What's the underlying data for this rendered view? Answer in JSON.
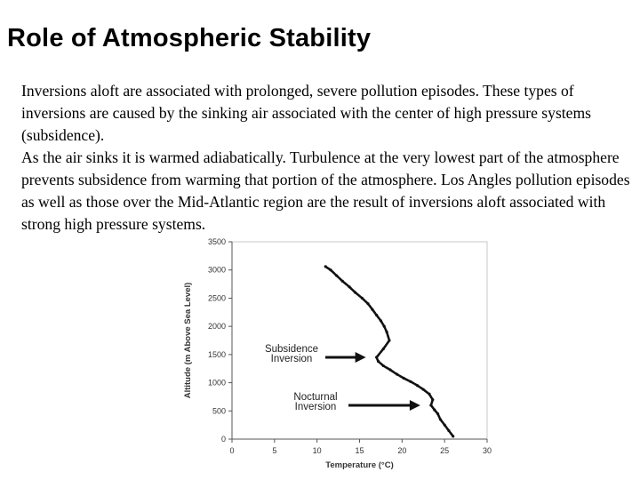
{
  "slide": {
    "title": "Role of Atmospheric Stability",
    "paragraphs": [
      "Inversions aloft are associated with prolonged, severe pollution episodes.  These types of inversions are caused by the sinking air associated with the center of high pressure systems (subsidence).",
      "As the air sinks it is warmed adiabatically.  Turbulence at the very lowest part of the atmosphere prevents subsidence from warming that portion of the atmosphere.  Los Angles pollution episodes as well as those over the Mid-Atlantic region are the result of inversions aloft associated with strong high pressure systems."
    ]
  },
  "chart_data": {
    "type": "line",
    "title": "",
    "xlabel": "Temperature (°C)",
    "ylabel": "Altitude (m Above Sea Level)",
    "xlim": [
      0,
      30
    ],
    "ylim": [
      0,
      3500
    ],
    "xticks": [
      "0",
      "5",
      "10",
      "15",
      "20",
      "25",
      "30"
    ],
    "yticks": [
      "0",
      "500",
      "1000",
      "1500",
      "2000",
      "2500",
      "3000",
      "3500"
    ],
    "grid": false,
    "series": [
      {
        "color": "#111111",
        "x": [
          26.0,
          25.5,
          25.0,
          24.5,
          24.2,
          23.8,
          23.4,
          23.6,
          23.2,
          22.5,
          21.8,
          21.0,
          20.2,
          19.4,
          18.6,
          17.8,
          17.2,
          17.0,
          17.8,
          18.5,
          18.2,
          17.9,
          17.5,
          17.0,
          16.5,
          16.0,
          15.3,
          14.5,
          13.8,
          13.0,
          12.3,
          11.6,
          11.0
        ],
        "y": [
          50,
          150,
          250,
          350,
          450,
          520,
          600,
          700,
          800,
          880,
          950,
          1020,
          1080,
          1150,
          1230,
          1300,
          1380,
          1450,
          1600,
          1750,
          1900,
          2000,
          2100,
          2200,
          2300,
          2400,
          2500,
          2600,
          2700,
          2800,
          2900,
          3000,
          3060
        ]
      }
    ],
    "annotations": [
      {
        "label_lines": [
          "Subsidence",
          "Inversion"
        ],
        "arrow_to": [
          17.0,
          1450
        ]
      },
      {
        "label_lines": [
          "Nocturnal",
          "Inversion"
        ],
        "arrow_to": [
          23.4,
          600
        ]
      }
    ]
  }
}
